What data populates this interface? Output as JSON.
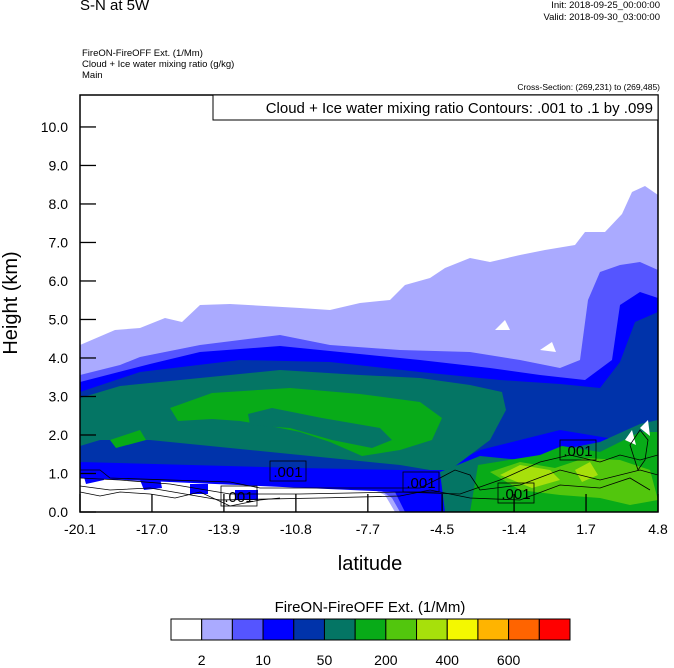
{
  "header": {
    "title": "S-N at 5W",
    "init": "Init: 2018-09-25_00:00:00",
    "valid": "Valid: 2018-09-30_03:00:00",
    "field_lines": [
      "FireON-FireOFF Ext.   (1/Mm)",
      "Cloud + Ice water mixing ratio   (g/kg)",
      "Main"
    ],
    "cross_section": "Cross-Section: (269,231) to (269,485)",
    "contour_info": "Cloud + Ice water mixing ratio Contours: .001 to .1 by .099"
  },
  "chart_data": {
    "type": "heatmap",
    "title": "FireON-FireOFF Ext.  (1/Mm)",
    "xlabel": "latitude",
    "ylabel": "Height (km)",
    "xlim": [
      -20.1,
      4.8
    ],
    "ylim": [
      0.0,
      10.83
    ],
    "xticks": [
      "-20.1",
      "-17.0",
      "-13.9",
      "-10.8",
      "-7.7",
      "-4.5",
      "-1.4",
      "1.7",
      "4.8"
    ],
    "xtick_values": [
      -20.1,
      -17.0,
      -13.9,
      -10.8,
      -7.7,
      -4.5,
      -1.4,
      1.7,
      4.8
    ],
    "yticks": [
      "0.0",
      "1.0",
      "2.0",
      "3.0",
      "4.0",
      "5.0",
      "6.0",
      "7.0",
      "8.0",
      "9.0",
      "10.0"
    ],
    "ytick_values": [
      0,
      1,
      2,
      3,
      4,
      5,
      6,
      7,
      8,
      9,
      10
    ],
    "colorbar": {
      "title": "FireON-FireOFF Ext.  (1/Mm)",
      "colors": [
        "#ffffff",
        "#aaaaff",
        "#5555ff",
        "#0000ff",
        "#0033aa",
        "#047564",
        "#08ab18",
        "#52c60d",
        "#a7e00b",
        "#f4f800",
        "#ffb400",
        "#ff6400",
        "#ff0000"
      ],
      "labels": [
        "2",
        "10",
        "50",
        "200",
        "400",
        "600"
      ]
    },
    "contour_labels": [
      ".001",
      ".001",
      ".001",
      ".001",
      ".001"
    ]
  }
}
